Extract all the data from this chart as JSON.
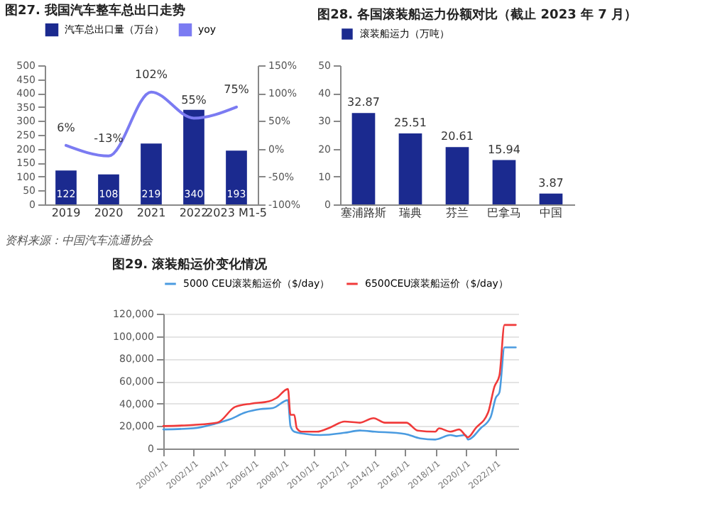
{
  "chart_data": [
    {
      "type": "bar",
      "title": "图27. 我国汽车整车总出口走势",
      "categories": [
        "2019",
        "2020",
        "2021",
        "2022",
        "2023 M1-5"
      ],
      "series": [
        {
          "name": "汽车总出口量（万台）",
          "color": "#1b2a8f",
          "values": [
            122,
            108,
            219,
            340,
            193
          ],
          "value_labels": [
            "122",
            "108",
            "219",
            "340",
            "193"
          ]
        },
        {
          "name": "yoy",
          "type": "line",
          "axis": "y2",
          "color": "#7b7bf2",
          "values": [
            6,
            -13,
            102,
            55,
            75
          ],
          "value_labels": [
            "6%",
            "-13%",
            "102%",
            "55%",
            "75%"
          ]
        }
      ],
      "ylim": [
        0,
        500
      ],
      "yticks": [
        0,
        50,
        100,
        150,
        200,
        250,
        300,
        350,
        400,
        450,
        500
      ],
      "y2lim": [
        -100,
        150
      ],
      "y2ticks": [
        {
          "value": -100,
          "label": "-100%"
        },
        {
          "value": -50,
          "label": "-50%"
        },
        {
          "value": 0,
          "label": "0%"
        },
        {
          "value": 50,
          "label": "50%"
        },
        {
          "value": 100,
          "label": "100%"
        },
        {
          "value": 150,
          "label": "150%"
        }
      ],
      "legend": "top",
      "annotations": [
        "资料来源：中国汽车流通协会"
      ]
    },
    {
      "type": "bar",
      "title": "图28. 各国滚装船运力份额对比（截止 2023 年 7 月）",
      "categories": [
        "塞浦路斯",
        "瑞典",
        "芬兰",
        "巴拿马",
        "中国"
      ],
      "series": [
        {
          "name": "滚装船运力（万吨）",
          "color": "#1b2a8f",
          "values": [
            32.87,
            25.51,
            20.61,
            15.94,
            3.87
          ]
        }
      ],
      "ylim": [
        0,
        50
      ],
      "yticks": [
        0,
        10,
        20,
        30,
        40,
        50
      ],
      "data_labels": true,
      "legend": "top"
    },
    {
      "type": "line",
      "title": "图29. 滚装船运价变化情况",
      "series": [
        {
          "name": "5000 CEU滚装船运价（$/day）",
          "color": "#4a9be0",
          "x": [
            "2000-01",
            "2002-01",
            "2003-06",
            "2004-06",
            "2005-06",
            "2006-06",
            "2007-04",
            "2008-04",
            "2008-06",
            "2008-09",
            "2009-06",
            "2010-06",
            "2012-01",
            "2013-01",
            "2014-01",
            "2016-01",
            "2017-01",
            "2018-01",
            "2019-01",
            "2019-06",
            "2020-01",
            "2020-03",
            "2021-01",
            "2021-09",
            "2022-01",
            "2022-04",
            "2022-08",
            "2023-05"
          ],
          "values": [
            17000,
            18000,
            22000,
            26000,
            32000,
            35000,
            36000,
            43000,
            20000,
            15000,
            13000,
            12000,
            14000,
            16000,
            15000,
            13000,
            9000,
            8000,
            12000,
            11000,
            12000,
            8000,
            18000,
            28000,
            45000,
            50000,
            90000,
            90000
          ]
        },
        {
          "name": "6500CEU滚装船运价（$/day）",
          "color": "#f03a3a",
          "x": [
            "2000-01",
            "2002-01",
            "2003-08",
            "2004-10",
            "2005-11",
            "2007-01",
            "2007-07",
            "2008-04",
            "2008-06",
            "2008-09",
            "2008-11",
            "2009-03",
            "2010-03",
            "2011-02",
            "2012-01",
            "2013-01",
            "2013-12",
            "2014-09",
            "2016-02",
            "2016-11",
            "2018-01",
            "2018-04",
            "2019-01",
            "2019-08",
            "2020-03",
            "2020-09",
            "2021-07",
            "2021-12",
            "2022-04",
            "2022-08",
            "2023-05"
          ],
          "values": [
            20000,
            21000,
            23000,
            37000,
            40000,
            42000,
            45000,
            53000,
            30000,
            30000,
            18000,
            15000,
            15000,
            19000,
            24000,
            23000,
            27000,
            23000,
            23000,
            16000,
            15000,
            18000,
            15000,
            17000,
            10000,
            18000,
            32000,
            55000,
            65000,
            110000,
            110000
          ]
        }
      ],
      "xlim": [
        "2000-01-01",
        "2023-07-01"
      ],
      "xticks": [
        {
          "value": "2000-01-01",
          "label": "2000/1/1"
        },
        {
          "value": "2002-01-01",
          "label": "2002/1/1"
        },
        {
          "value": "2004-01-01",
          "label": "2004/1/1"
        },
        {
          "value": "2006-01-01",
          "label": "2006/1/1"
        },
        {
          "value": "2008-01-01",
          "label": "2008/1/1"
        },
        {
          "value": "2010-01-01",
          "label": "2010/1/1"
        },
        {
          "value": "2012-01-01",
          "label": "2012/1/1"
        },
        {
          "value": "2014-01-01",
          "label": "2014/1/1"
        },
        {
          "value": "2016-01-01",
          "label": "2016/1/1"
        },
        {
          "value": "2018-01-01",
          "label": "2018/1/1"
        },
        {
          "value": "2020-01-01",
          "label": "2020/1/1"
        },
        {
          "value": "2022-01-01",
          "label": "2022/1/1"
        }
      ],
      "ylim": [
        0,
        120000
      ],
      "yticks": [
        0,
        {
          "value": 20000,
          "label": "20,000"
        },
        {
          "value": 40000,
          "label": "40,000"
        },
        {
          "value": 60000,
          "label": "60,000"
        },
        {
          "value": 80000,
          "label": "80,000"
        },
        {
          "value": 100000,
          "label": "100,000"
        },
        {
          "value": 120000,
          "label": "120,000"
        }
      ],
      "grid": "y",
      "legend": "top"
    }
  ]
}
